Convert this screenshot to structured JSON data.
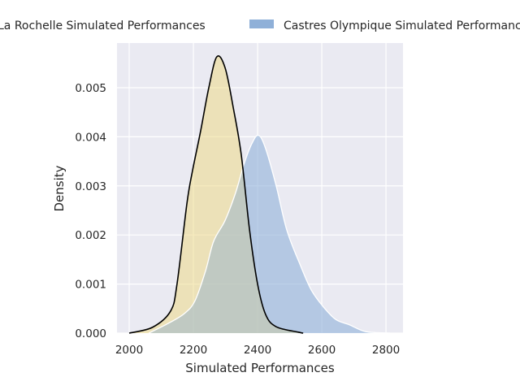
{
  "chart_data": {
    "type": "area",
    "title": "",
    "xlabel": "Simulated Performances",
    "ylabel": "Density",
    "xlim": [
      1962,
      2853
    ],
    "ylim": [
      0,
      0.00591
    ],
    "xticks": [
      2000,
      2200,
      2400,
      2600,
      2800
    ],
    "xtick_labels": [
      "2000",
      "2200",
      "2400",
      "2600",
      "2800"
    ],
    "yticks": [
      0,
      0.001,
      0.002,
      0.003,
      0.004,
      0.005
    ],
    "ytick_labels": [
      "0.000",
      "0.001",
      "0.002",
      "0.003",
      "0.004",
      "0.005"
    ],
    "grid": true,
    "legend_placement": "top-center (outside, clipped)",
    "series": [
      {
        "name": "La Rochelle Simulated Performances",
        "fill": "#f0dc8c",
        "line": "#000000",
        "x": [
          2000,
          2073,
          2129,
          2149,
          2180,
          2197,
          2222,
          2248,
          2273,
          2299,
          2324,
          2349,
          2375,
          2400,
          2425,
          2458,
          2527,
          2542
        ],
        "y": [
          0,
          0.00012,
          0.00045,
          0.001,
          0.00265,
          0.0033,
          0.0041,
          0.005,
          0.00563,
          0.0054,
          0.0046,
          0.00364,
          0.0021,
          0.001,
          0.00038,
          0.00013,
          2e-05,
          0
        ]
      },
      {
        "name": "Castres Olympique Simulated Performances",
        "fill": "#8fb0d8",
        "line": "#ffffff",
        "x": [
          2061,
          2122,
          2172,
          2205,
          2238,
          2263,
          2299,
          2332,
          2357,
          2382,
          2403,
          2425,
          2458,
          2491,
          2534,
          2567,
          2603,
          2643,
          2686,
          2737,
          2813
        ],
        "y": [
          0,
          0.0002,
          0.0004,
          0.00066,
          0.00127,
          0.00187,
          0.0023,
          0.00287,
          0.00343,
          0.00386,
          0.00403,
          0.00376,
          0.003,
          0.0021,
          0.00137,
          0.00088,
          0.00055,
          0.00028,
          0.00017,
          3e-05,
          0
        ]
      }
    ]
  }
}
